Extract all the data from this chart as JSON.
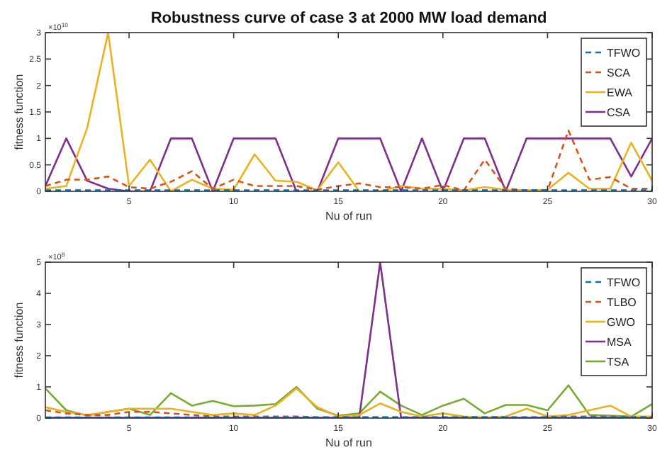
{
  "chart_data": [
    {
      "type": "line",
      "title": "Robustness curve of case 3 at 2000 MW load demand",
      "xlabel": "Nu of run",
      "ylabel": "fitness function",
      "annotations": [
        "×10$^{10}$"
      ],
      "x": [
        1,
        2,
        3,
        4,
        5,
        6,
        7,
        8,
        9,
        10,
        11,
        12,
        13,
        14,
        15,
        16,
        17,
        18,
        19,
        20,
        21,
        22,
        23,
        24,
        25,
        26,
        27,
        28,
        29,
        30
      ],
      "xlim": [
        1,
        30
      ],
      "xticks": [
        5,
        10,
        15,
        20,
        25,
        30
      ],
      "ylim": [
        0,
        3
      ],
      "yticks": [
        0,
        0.5,
        1,
        1.5,
        2,
        2.5,
        3
      ],
      "legend": "top right",
      "grid": false,
      "series": [
        {
          "name": "TFWO",
          "color": "#0072bd",
          "line_style": "dashed",
          "values": [
            0.02,
            0.02,
            0.02,
            0.02,
            0.02,
            0.02,
            0.02,
            0.02,
            0.02,
            0.02,
            0.02,
            0.02,
            0.02,
            0.02,
            0.02,
            0.02,
            0.02,
            0.02,
            0.02,
            0.02,
            0.02,
            0.02,
            0.02,
            0.02,
            0.02,
            0.02,
            0.02,
            0.02,
            0.02,
            0.02
          ]
        },
        {
          "name": "SCA",
          "color": "#d95319",
          "line_style": "dashed",
          "values": [
            0.1,
            0.22,
            0.22,
            0.28,
            0.08,
            0.05,
            0.18,
            0.38,
            0.05,
            0.22,
            0.1,
            0.1,
            0.1,
            0.03,
            0.1,
            0.15,
            0.08,
            0.08,
            0.05,
            0.12,
            0.02,
            0.6,
            0.05,
            0.02,
            0.02,
            1.15,
            0.22,
            0.27,
            0.05,
            0.05
          ]
        },
        {
          "name": "EWA",
          "color": "#edb120",
          "line_style": "solid",
          "values": [
            0.05,
            0.1,
            1.2,
            3,
            0.1,
            0.6,
            0,
            0.22,
            0.05,
            0.03,
            0.7,
            0.2,
            0.18,
            0.02,
            0.55,
            0,
            0,
            0.1,
            0.05,
            0.05,
            0.02,
            0.08,
            0.03,
            0.02,
            0.03,
            0.35,
            0.05,
            0.05,
            0.92,
            0.2
          ]
        },
        {
          "name": "CSA",
          "color": "#7e2f8e",
          "line_style": "solid",
          "values": [
            0.1,
            1,
            0.2,
            0.05,
            0,
            0,
            1,
            1,
            0,
            1,
            1,
            1,
            0,
            0,
            1,
            1,
            1,
            0,
            1,
            0,
            1,
            1,
            0,
            1,
            1,
            1,
            1,
            1,
            0.28,
            1
          ]
        }
      ]
    },
    {
      "type": "line",
      "xlabel": "Nu of run",
      "ylabel": "fitness function",
      "annotations": [
        "×10$^{8}$"
      ],
      "x": [
        1,
        2,
        3,
        4,
        5,
        6,
        7,
        8,
        9,
        10,
        11,
        12,
        13,
        14,
        15,
        16,
        17,
        18,
        19,
        20,
        21,
        22,
        23,
        24,
        25,
        26,
        27,
        28,
        29,
        30
      ],
      "xlim": [
        1,
        30
      ],
      "xticks": [
        5,
        10,
        15,
        20,
        25,
        30
      ],
      "ylim": [
        0,
        5
      ],
      "yticks": [
        0,
        1,
        2,
        3,
        4,
        5
      ],
      "legend": "top right",
      "grid": false,
      "series": [
        {
          "name": "TFWO",
          "color": "#0072bd",
          "line_style": "dashed",
          "values": [
            0.02,
            0.02,
            0.02,
            0.02,
            0.02,
            0.02,
            0.02,
            0.02,
            0.02,
            0.02,
            0.02,
            0.02,
            0.02,
            0.02,
            0.02,
            0.02,
            0.02,
            0.02,
            0.02,
            0.02,
            0.02,
            0.02,
            0.02,
            0.02,
            0.02,
            0.02,
            0.02,
            0.02,
            0.02,
            0.02
          ]
        },
        {
          "name": "TLBO",
          "color": "#d95319",
          "line_style": "dashed",
          "values": [
            0.25,
            0.15,
            0.1,
            0.1,
            0.2,
            0.2,
            0.15,
            0.1,
            0.05,
            0.05,
            0.05,
            0.05,
            0.05,
            0.03,
            0.03,
            0.03,
            0.03,
            0.03,
            0.03,
            0.03,
            0.03,
            0.03,
            0.03,
            0.03,
            0.03,
            0.05,
            0.05,
            0.05,
            0.03,
            0.03
          ]
        },
        {
          "name": "GWO",
          "color": "#edb120",
          "line_style": "solid",
          "values": [
            0.35,
            0.2,
            0.1,
            0.2,
            0.3,
            0.3,
            0.3,
            0.2,
            0.1,
            0.15,
            0.1,
            0.4,
            0.95,
            0.35,
            0.05,
            0.1,
            0.47,
            0.2,
            0.05,
            0.15,
            0.05,
            0.02,
            0.05,
            0.3,
            0.05,
            0.1,
            0.25,
            0.4,
            0.05,
            0.05
          ]
        },
        {
          "name": "MSA",
          "color": "#7e2f8e",
          "line_style": "solid",
          "values": [
            0.01,
            0.01,
            0.01,
            0.01,
            0.01,
            0.01,
            0.01,
            0.01,
            0.01,
            0.01,
            0.01,
            0.01,
            0.01,
            0.01,
            0.01,
            0.01,
            5,
            0.01,
            0.01,
            0.01,
            0.01,
            0.01,
            0.01,
            0.01,
            0.01,
            0.01,
            0.01,
            0.01,
            0.01,
            0.01
          ]
        },
        {
          "name": "TSA",
          "color": "#77ac30",
          "line_style": "solid",
          "values": [
            0.95,
            0.25,
            0.08,
            0.2,
            0.3,
            0.1,
            0.8,
            0.4,
            0.55,
            0.38,
            0.4,
            0.45,
            1,
            0.3,
            0.08,
            0.15,
            0.85,
            0.4,
            0.1,
            0.4,
            0.62,
            0.15,
            0.42,
            0.42,
            0.25,
            1.05,
            0.1,
            0.08,
            0.05,
            0.45
          ]
        }
      ]
    }
  ]
}
